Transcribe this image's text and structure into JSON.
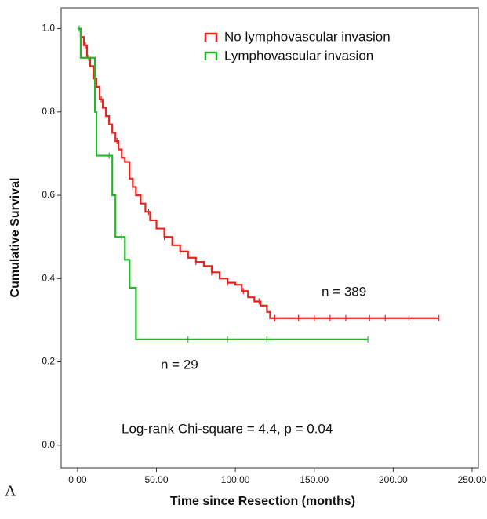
{
  "chart_data": {
    "type": "step",
    "xlabel": "Time since Resection (months)",
    "ylabel": "Cumulative Survival",
    "panel_label": "A",
    "annotations": [
      "n = 389",
      "n = 29",
      "Log-rank Chi-square = 4.4, p = 0.04"
    ],
    "xlim": [
      -10.4,
      254
    ],
    "ylim": [
      -0.055,
      1.05
    ],
    "xticks": [
      {
        "value": 0,
        "label": "0.00"
      },
      {
        "value": 50,
        "label": "50.00"
      },
      {
        "value": 100,
        "label": "100.00"
      },
      {
        "value": 150,
        "label": "150.00"
      },
      {
        "value": 200,
        "label": "200.00"
      },
      {
        "value": 250,
        "label": "250.00"
      }
    ],
    "yticks": [
      {
        "value": 0,
        "label": "0.0"
      },
      0.2,
      0.4,
      0.6,
      0.8,
      {
        "value": 1,
        "label": "1.0"
      }
    ],
    "series": [
      {
        "name": "No lymphovascular invasion",
        "color": "#e8231f",
        "x": [
          0,
          2,
          4,
          6,
          8,
          10,
          12,
          14,
          16,
          18,
          20,
          22,
          24,
          26,
          28,
          30,
          33,
          35,
          37,
          40,
          43,
          46,
          50,
          55,
          60,
          65,
          70,
          75,
          80,
          85,
          90,
          95,
          100,
          104,
          108,
          112,
          116,
          120,
          122,
          229
        ],
        "y": [
          1.0,
          0.98,
          0.96,
          0.93,
          0.91,
          0.88,
          0.86,
          0.83,
          0.81,
          0.79,
          0.77,
          0.75,
          0.73,
          0.71,
          0.69,
          0.68,
          0.64,
          0.62,
          0.6,
          0.58,
          0.56,
          0.54,
          0.52,
          0.5,
          0.48,
          0.465,
          0.45,
          0.44,
          0.43,
          0.415,
          0.4,
          0.39,
          0.385,
          0.37,
          0.355,
          0.345,
          0.335,
          0.32,
          0.305,
          0.305
        ],
        "censored": [
          5,
          15,
          25,
          35,
          45,
          55,
          65,
          75,
          85,
          95,
          105,
          115,
          125,
          140,
          150,
          160,
          170,
          185,
          195,
          210,
          229
        ]
      },
      {
        "name": "Lymphovascular invasion",
        "color": "#27b52c",
        "x": [
          0,
          2,
          11,
          12,
          22,
          24,
          30,
          33,
          37,
          184
        ],
        "y": [
          1.0,
          0.93,
          0.8,
          0.695,
          0.6,
          0.5,
          0.445,
          0.378,
          0.254,
          0.254
        ],
        "censored": [
          1,
          7,
          20,
          28,
          70,
          95,
          120,
          184
        ]
      }
    ]
  }
}
